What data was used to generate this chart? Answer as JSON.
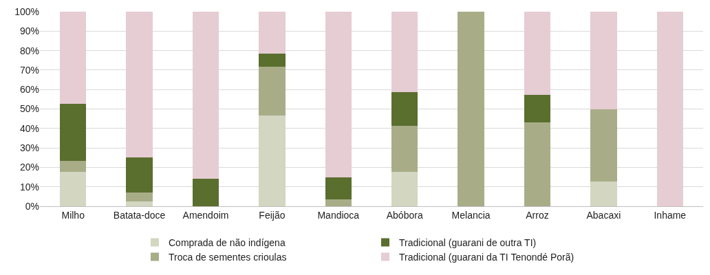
{
  "chart_data": {
    "type": "bar",
    "stacked": true,
    "categories": [
      "Milho",
      "Batata-doce",
      "Amendoim",
      "Feijão",
      "Mandioca",
      "Abóbora",
      "Melancia",
      "Arroz",
      "Abacaxi",
      "Inhame"
    ],
    "series": [
      {
        "name": "Comprada de não indígena",
        "color": "#d3d6c0",
        "values": [
          17.6,
          2.6,
          0,
          46.6,
          0,
          17.7,
          0,
          0,
          12.7,
          0
        ]
      },
      {
        "name": "Troca de sementes crioulas",
        "color": "#a8ad88",
        "values": [
          5.6,
          4.3,
          0,
          25,
          3.6,
          23.5,
          100,
          43.2,
          37.3,
          0
        ]
      },
      {
        "name": "Tradicional (guarani de outra TI)",
        "color": "#5a6e2e",
        "values": [
          29.4,
          18.1,
          14.3,
          7,
          11.1,
          17.6,
          0,
          14,
          0,
          0
        ]
      },
      {
        "name": "Tradicional (guarani da TI Tenondé Porã)",
        "color": "#e6ccd3",
        "values": [
          47.4,
          75,
          85.7,
          21.4,
          85.3,
          41.2,
          0,
          42.8,
          50,
          100
        ]
      }
    ],
    "ylim": [
      0,
      100
    ],
    "yticks": [
      {
        "value": 0,
        "label": "0%"
      },
      {
        "value": 10,
        "label": "10%"
      },
      {
        "value": 20,
        "label": "20%"
      },
      {
        "value": 30,
        "label": "30%"
      },
      {
        "value": 40,
        "label": "40%"
      },
      {
        "value": 50,
        "label": "50%"
      },
      {
        "value": 60,
        "label": "60%"
      },
      {
        "value": 70,
        "label": "70%"
      },
      {
        "value": 80,
        "label": "80%"
      },
      {
        "value": 90,
        "label": "90%"
      },
      {
        "value": 100,
        "label": "100%"
      }
    ],
    "grid": "y",
    "legend": "bottom"
  }
}
